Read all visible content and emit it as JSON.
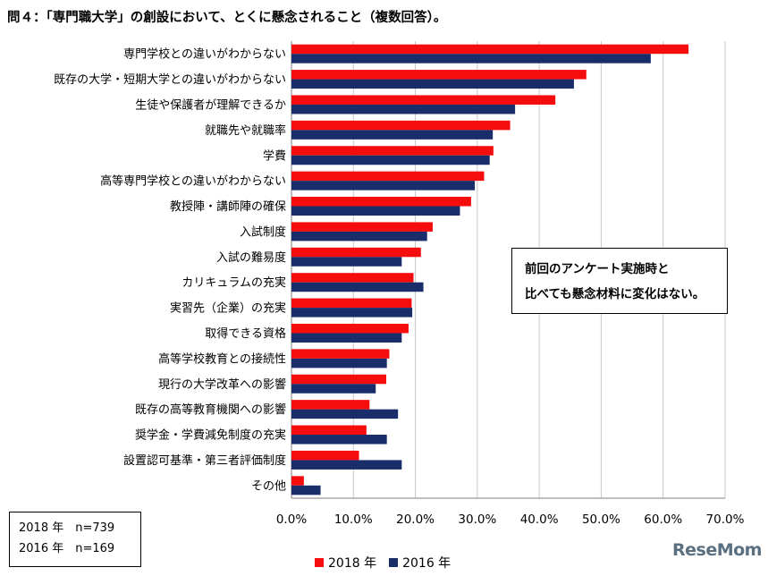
{
  "title": "問４：「専門職大学」の創設において、とくに懸念されること（複数回答）。",
  "note": {
    "line1": "前回のアンケート実施時と",
    "line2": "比べても懸念材料に変化はない。"
  },
  "sample": {
    "line1": "2018 年　n=739",
    "line2": "2016 年　n=169"
  },
  "logo": "ReseMom",
  "colors": {
    "s2018": "#f50c0c",
    "s2016": "#1a2d6b"
  },
  "chart_data": {
    "type": "bar",
    "orientation": "horizontal",
    "categories": [
      "専門学校との違いがわからない",
      "既存の大学・短期大学との違いがわからない",
      "生徒や保護者が理解できるか",
      "就職先や就職率",
      "学費",
      "高等専門学校との違いがわからない",
      "教授陣・講師陣の確保",
      "入試制度",
      "入試の難易度",
      "カリキュラムの充実",
      "実習先（企業）の充実",
      "取得できる資格",
      "高等学校教育との接続性",
      "現行の大学改革への影響",
      "既存の高等教育機関への影響",
      "奨学金・学費減免制度の充実",
      "設置認可基準・第三者評価制度",
      "その他"
    ],
    "series": [
      {
        "name": "2018 年",
        "values": [
          64.1,
          47.6,
          42.6,
          35.3,
          32.6,
          31.1,
          29.0,
          22.8,
          20.9,
          19.7,
          19.4,
          18.9,
          15.8,
          15.3,
          12.6,
          12.1,
          10.9,
          2.0
        ]
      },
      {
        "name": "2016 年",
        "values": [
          58.0,
          45.6,
          36.1,
          32.5,
          32.0,
          29.6,
          27.2,
          21.9,
          17.8,
          21.3,
          19.5,
          17.8,
          15.4,
          13.6,
          17.2,
          15.4,
          17.8,
          4.7
        ]
      }
    ],
    "xlim": [
      0,
      70
    ],
    "ticks": [
      "0.0%",
      "10.0%",
      "20.0%",
      "30.0%",
      "40.0%",
      "50.0%",
      "60.0%",
      "70.0%"
    ],
    "tick_values": [
      0,
      10,
      20,
      30,
      40,
      50,
      60,
      70
    ],
    "grid": "vertical",
    "legend": "bottom"
  }
}
